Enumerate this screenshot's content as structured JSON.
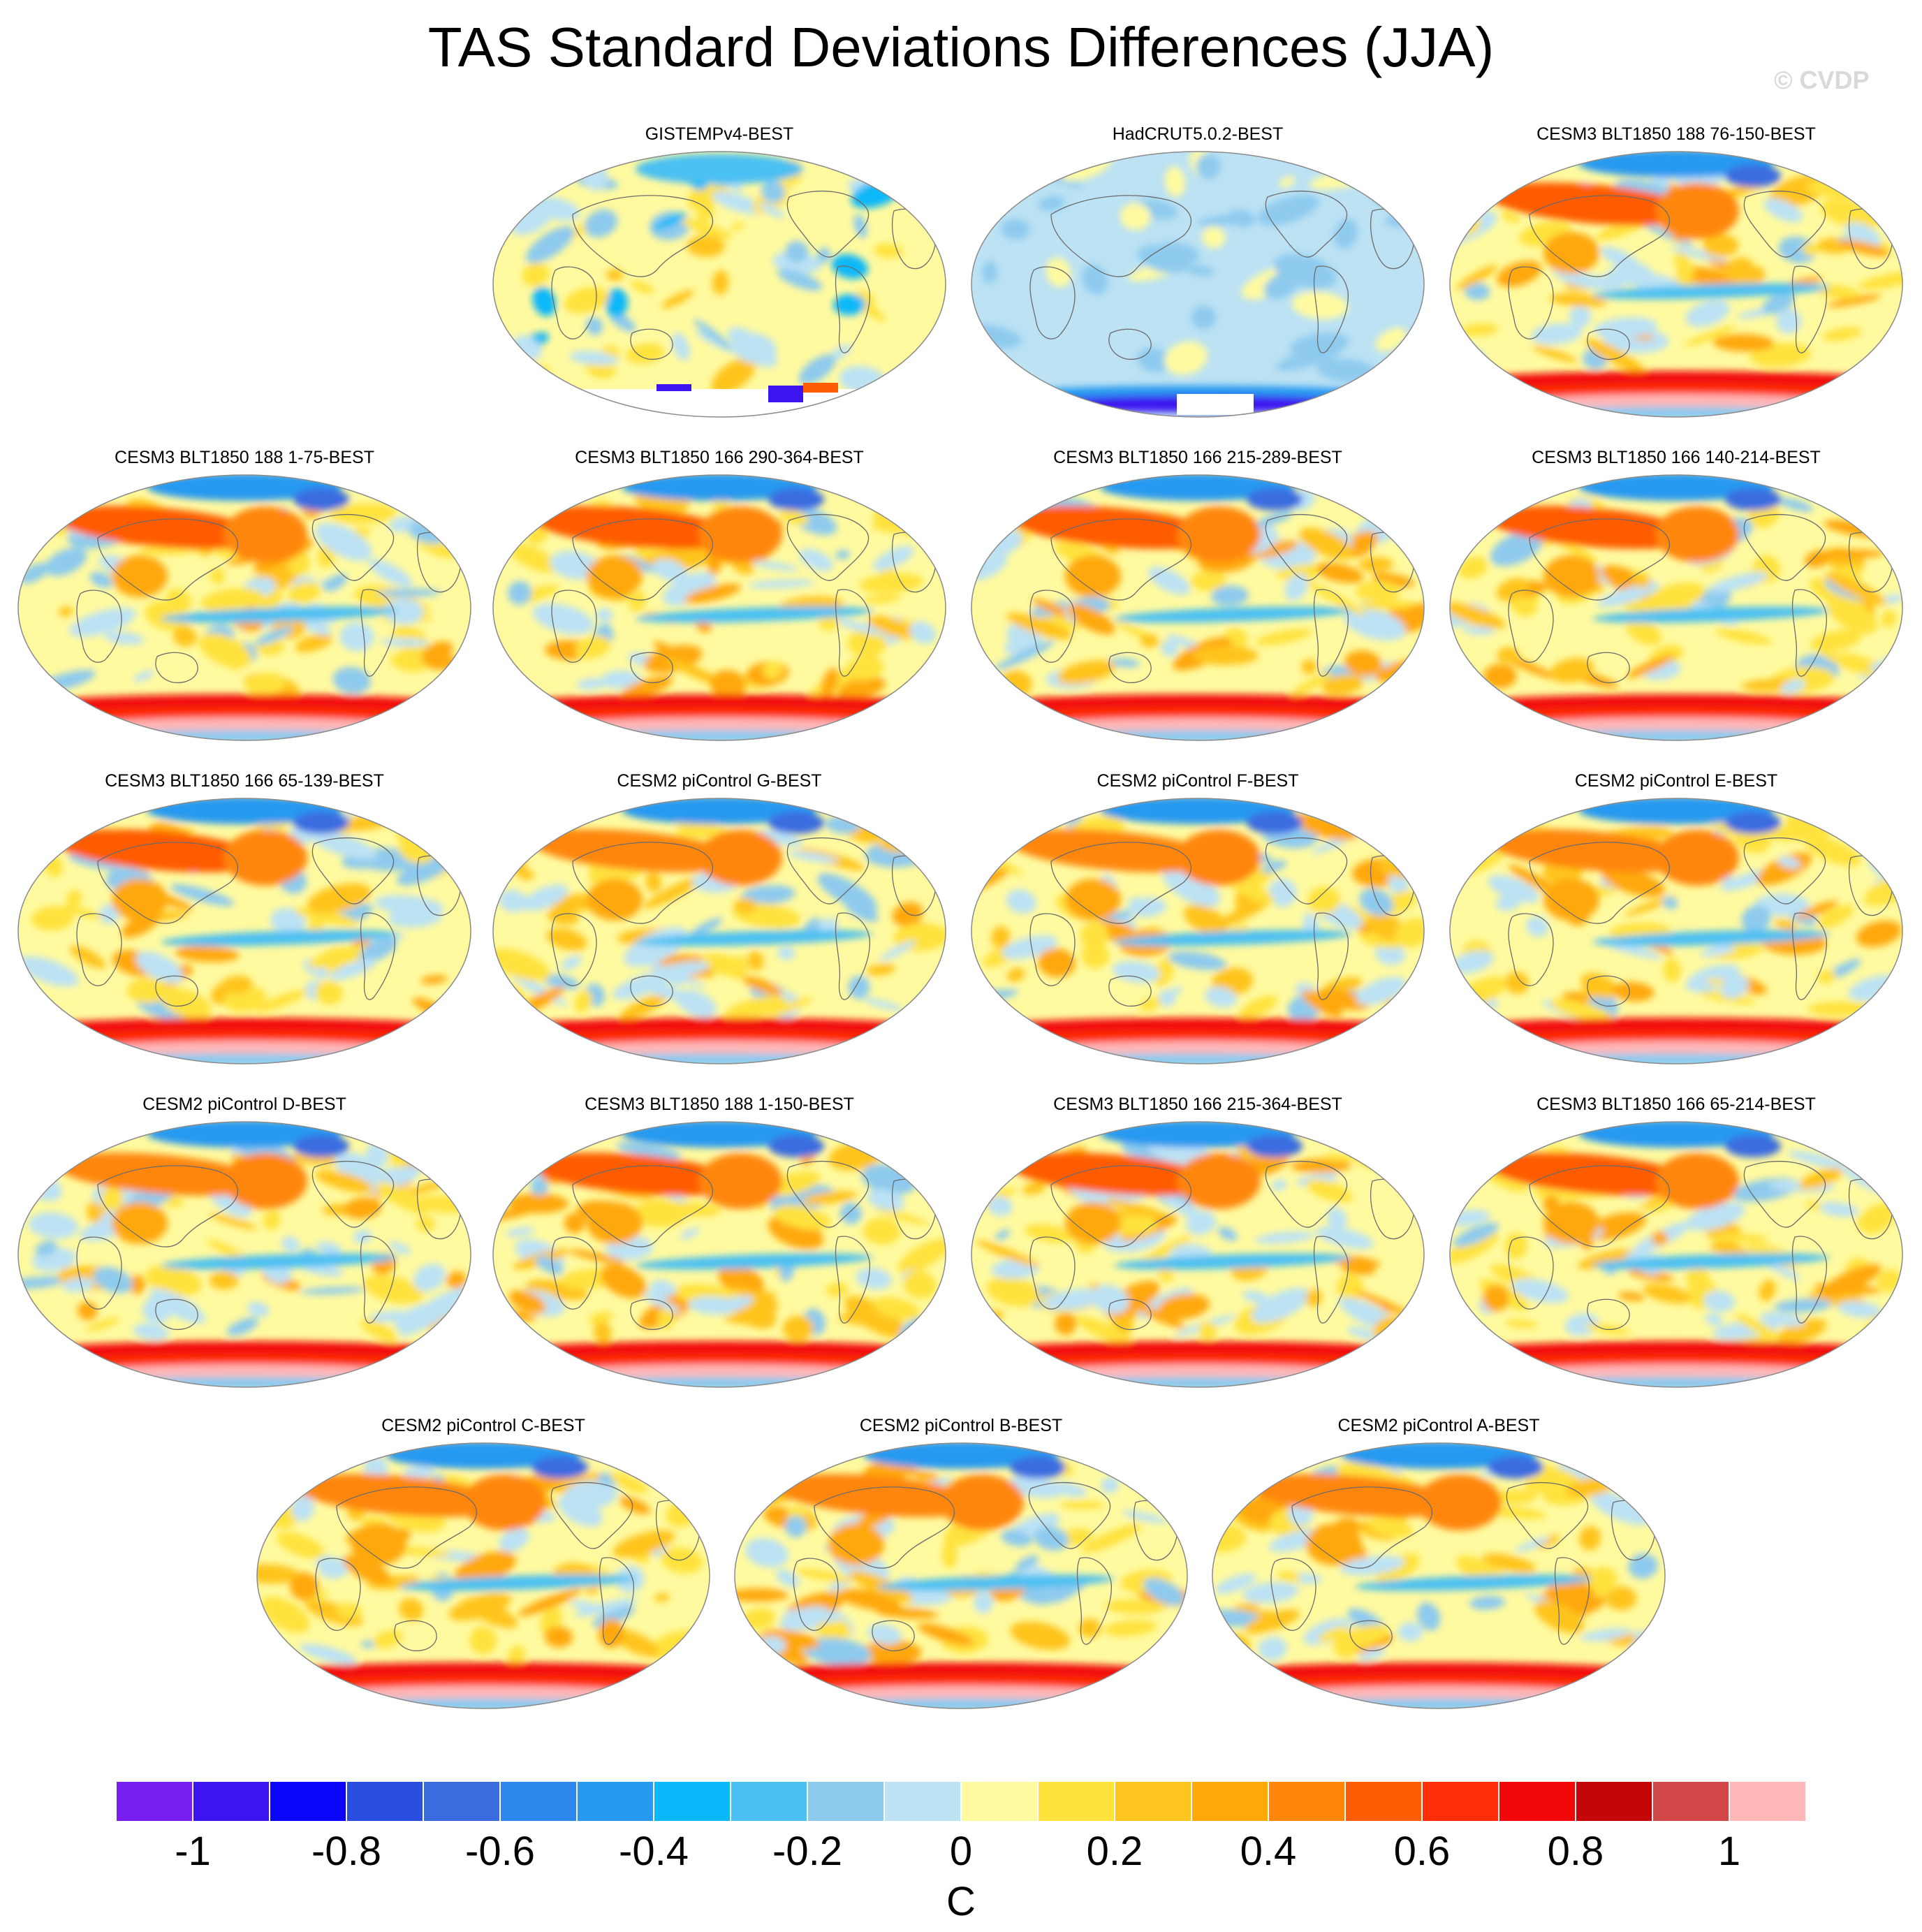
{
  "figure": {
    "title": "TAS Standard Deviations Differences (JJA)",
    "watermark": "© CVDP",
    "unit_label": "C"
  },
  "chart_data": {
    "type": "map",
    "projection": "robinson",
    "colorbar": {
      "levels": [
        -1.1,
        -1.0,
        -0.9,
        -0.8,
        -0.7,
        -0.6,
        -0.5,
        -0.4,
        -0.3,
        -0.2,
        -0.1,
        0.0,
        0.1,
        0.2,
        0.3,
        0.4,
        0.5,
        0.6,
        0.7,
        0.8,
        0.9,
        1.0,
        1.1
      ],
      "colors": [
        "#7a1ff2",
        "#3c14f0",
        "#0a05fa",
        "#2a4ee0",
        "#3a6ce0",
        "#2d86ec",
        "#2699f0",
        "#09b8f8",
        "#4cc0f2",
        "#8ecaee",
        "#bce2f4",
        "#fffaa0",
        "#ffe23c",
        "#ffc41e",
        "#ffa808",
        "#ff8608",
        "#ff5c06",
        "#ff2e06",
        "#f20808",
        "#c40606",
        "#d24848",
        "#ffb6b6"
      ],
      "tick_labels": [
        "-1",
        "-0.8",
        "-0.6",
        "-0.4",
        "-0.2",
        "0",
        "0.2",
        "0.4",
        "0.6",
        "0.8",
        "1"
      ]
    },
    "panels": [
      {
        "title": "GISTEMPv4-BEST",
        "style": "obs1"
      },
      {
        "title": "HadCRUT5.0.2-BEST",
        "style": "obs2"
      },
      {
        "title": "CESM3 BLT1850 188 76-150-BEST",
        "style": "model"
      },
      {
        "title": "CESM3 BLT1850 188 1-75-BEST",
        "style": "model"
      },
      {
        "title": "CESM3 BLT1850 166 290-364-BEST",
        "style": "model"
      },
      {
        "title": "CESM3 BLT1850 166 215-289-BEST",
        "style": "model"
      },
      {
        "title": "CESM3 BLT1850 166 140-214-BEST",
        "style": "model"
      },
      {
        "title": "CESM3 BLT1850 166 65-139-BEST",
        "style": "model"
      },
      {
        "title": "CESM2 piControl G-BEST",
        "style": "model2"
      },
      {
        "title": "CESM2 piControl F-BEST",
        "style": "model2"
      },
      {
        "title": "CESM2 piControl E-BEST",
        "style": "model2"
      },
      {
        "title": "CESM2 piControl D-BEST",
        "style": "model2"
      },
      {
        "title": "CESM3 BLT1850 188 1-150-BEST",
        "style": "model"
      },
      {
        "title": "CESM3 BLT1850 166 215-364-BEST",
        "style": "model"
      },
      {
        "title": "CESM3 BLT1850 166 65-214-BEST",
        "style": "model"
      },
      {
        "title": "CESM2 piControl C-BEST",
        "style": "model2"
      },
      {
        "title": "CESM2 piControl B-BEST",
        "style": "model2"
      },
      {
        "title": "CESM2 piControl A-BEST",
        "style": "model2"
      }
    ]
  }
}
